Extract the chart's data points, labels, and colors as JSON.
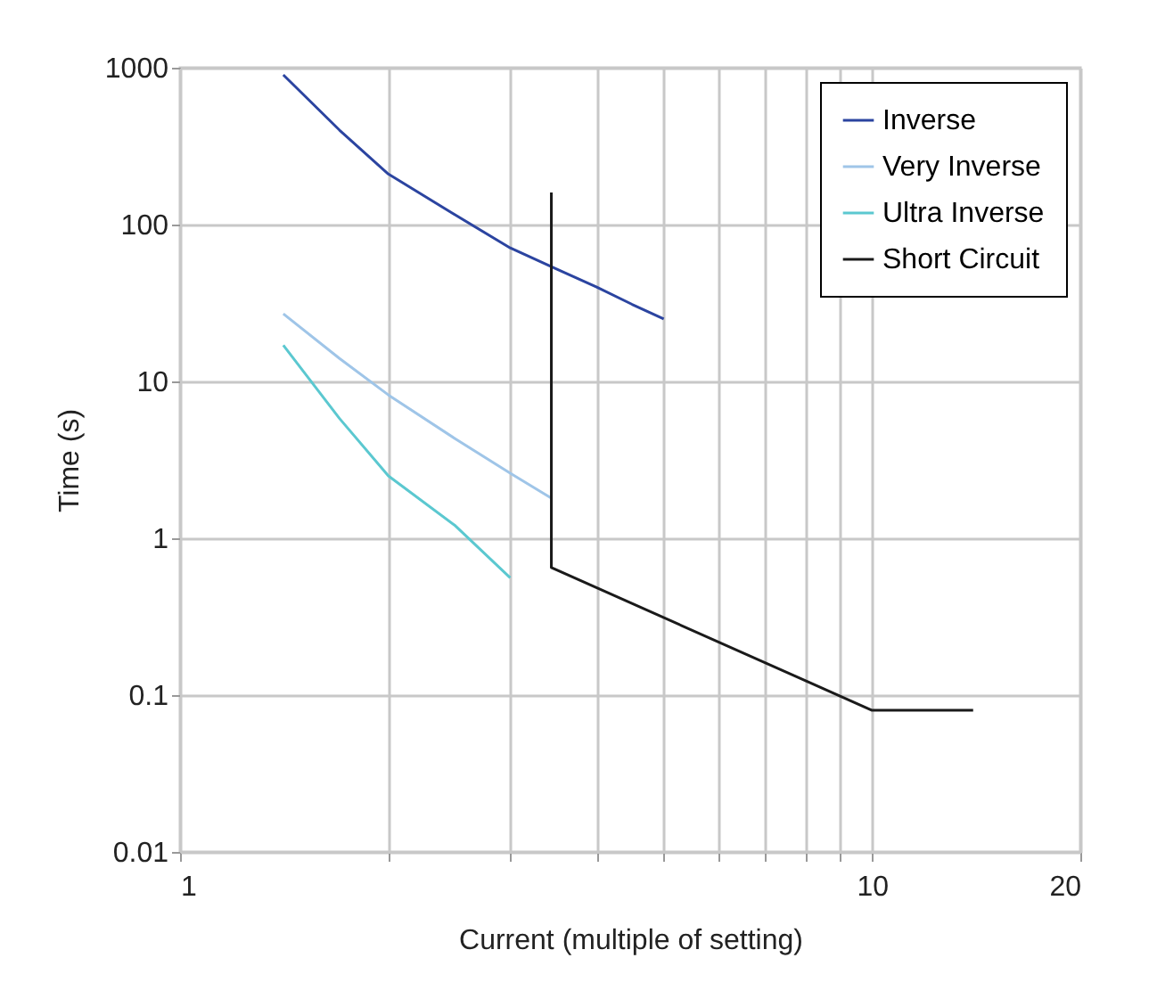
{
  "chart_data": {
    "type": "line",
    "xlabel": "Current (multiple of setting)",
    "ylabel": "Time (s)",
    "log": "xy",
    "grid": true,
    "legend": "top right",
    "line_style": "solid",
    "xlim": [
      1,
      20
    ],
    "ylim": [
      0.01,
      1000
    ],
    "xticks": [
      1,
      {
        "value": 2,
        "label": null
      },
      {
        "value": 3,
        "label": null
      },
      {
        "value": 4,
        "label": null
      },
      {
        "value": 5,
        "label": null
      },
      {
        "value": 6,
        "label": null
      },
      {
        "value": 7,
        "label": null
      },
      {
        "value": 8,
        "label": null
      },
      {
        "value": 9,
        "label": null
      },
      10,
      20
    ],
    "yticks": [
      0.01,
      0.1,
      1,
      10,
      100,
      1000
    ],
    "series": [
      {
        "name": "Inverse",
        "color": "#2b44a0",
        "x": [
          1.41,
          1.7,
          2,
          2.5,
          3,
          3.5,
          4,
          4.5,
          5
        ],
        "values": [
          900,
          400,
          210,
          115,
          71,
          52,
          40,
          31,
          25
        ]
      },
      {
        "name": "Very Inverse",
        "color": "#9fc5e8",
        "x": [
          1.41,
          1.7,
          2,
          2.5,
          3,
          3.44
        ],
        "values": [
          27,
          14,
          8.2,
          4.3,
          2.6,
          1.8
        ]
      },
      {
        "name": "Ultra Inverse",
        "color": "#5bc8d0",
        "x": [
          1.41,
          1.7,
          2,
          2.5,
          3
        ],
        "values": [
          17,
          5.8,
          2.5,
          1.2,
          0.56
        ]
      },
      {
        "name": "Short Circuit",
        "color": "#1a1a1a",
        "x": [
          3.44,
          3.44,
          10,
          14
        ],
        "values": [
          160,
          0.65,
          0.08,
          0.08
        ]
      }
    ]
  }
}
